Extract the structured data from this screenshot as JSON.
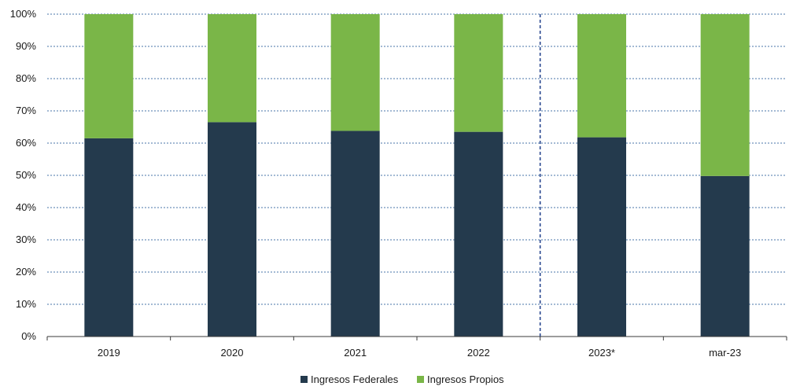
{
  "chart_data": {
    "type": "bar",
    "stacked": true,
    "percent": true,
    "categories": [
      "2019",
      "2020",
      "2021",
      "2022",
      "2023*",
      "mar-23"
    ],
    "series": [
      {
        "name": "Ingresos Federales",
        "color": "#243a4d",
        "values": [
          61.5,
          66.5,
          63.8,
          63.5,
          61.8,
          49.8
        ]
      },
      {
        "name": "Ingresos Propios",
        "color": "#7ab648",
        "values": [
          38.5,
          33.5,
          36.2,
          36.5,
          38.2,
          50.2
        ]
      }
    ],
    "y_ticks": [
      "0%",
      "10%",
      "20%",
      "30%",
      "40%",
      "50%",
      "60%",
      "70%",
      "80%",
      "90%",
      "100%"
    ],
    "ylim": [
      0,
      100
    ],
    "grid": true,
    "grid_color": "#4a74a8",
    "forecast_separator_after": "2022",
    "legend_position": "bottom-center",
    "title": "",
    "xlabel": "",
    "ylabel": ""
  }
}
